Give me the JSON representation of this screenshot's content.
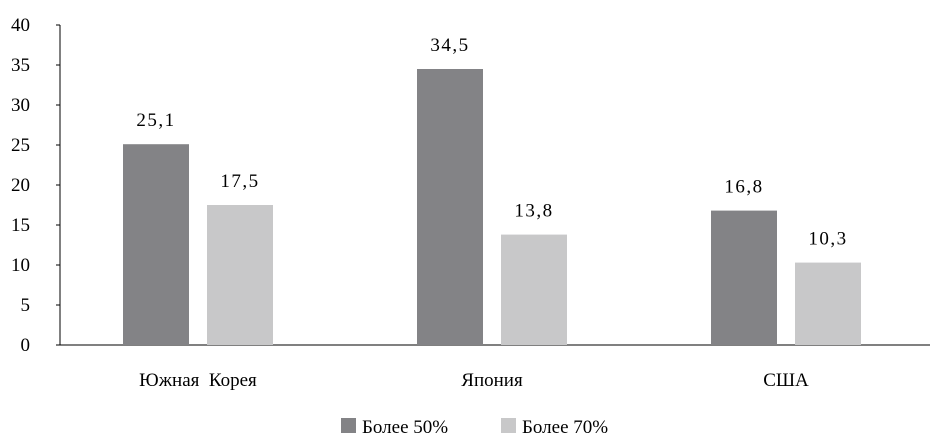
{
  "chart_data": {
    "type": "bar",
    "categories": [
      "Южная  Корея",
      "Япония",
      "США"
    ],
    "series": [
      {
        "name": "Более 50%",
        "values": [
          25.1,
          34.5,
          16.8
        ],
        "labels": [
          "25,1",
          "34,5",
          "16,8"
        ],
        "color": "#838386"
      },
      {
        "name": "Более 70%",
        "values": [
          17.5,
          13.8,
          10.3
        ],
        "labels": [
          "17,5",
          "13,8",
          "10,3"
        ],
        "color": "#c8c8c9"
      }
    ],
    "ylim": [
      0,
      40
    ],
    "yticks": [
      "0",
      "5",
      "10",
      "15",
      "20",
      "25",
      "30",
      "35",
      "40"
    ],
    "legend": "bottom-center",
    "grid": false
  }
}
